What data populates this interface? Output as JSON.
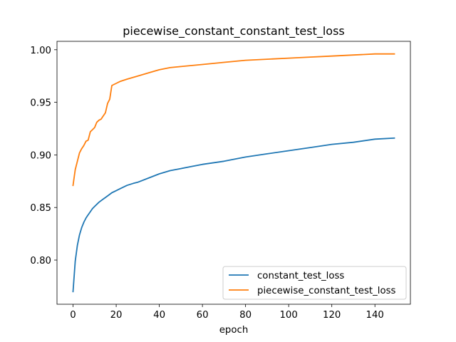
{
  "chart_data": {
    "type": "line",
    "title": "piecewise_constant_constant_test_loss",
    "xlabel": "epoch",
    "ylabel": "",
    "xlim": [
      -7.45,
      156.45
    ],
    "ylim": [
      0.758,
      1.008
    ],
    "xticks": [
      0,
      20,
      40,
      60,
      80,
      100,
      120,
      140
    ],
    "yticks": [
      0.8,
      0.85,
      0.9,
      0.95,
      1.0
    ],
    "ytick_labels": [
      "0.80",
      "0.85",
      "0.90",
      "0.95",
      "1.00"
    ],
    "legend_position": "lower-right",
    "series": [
      {
        "name": "constant_test_loss",
        "color": "#1f77b4",
        "x": [
          0,
          1,
          2,
          3,
          4,
          5,
          6,
          7,
          8,
          9,
          10,
          12,
          14,
          16,
          18,
          20,
          22,
          25,
          28,
          30,
          35,
          40,
          45,
          50,
          55,
          60,
          70,
          80,
          90,
          100,
          110,
          120,
          130,
          140,
          149
        ],
        "y": [
          0.77,
          0.799,
          0.814,
          0.824,
          0.831,
          0.836,
          0.84,
          0.843,
          0.846,
          0.849,
          0.851,
          0.855,
          0.858,
          0.861,
          0.864,
          0.866,
          0.868,
          0.871,
          0.873,
          0.874,
          0.878,
          0.882,
          0.885,
          0.887,
          0.889,
          0.891,
          0.894,
          0.898,
          0.901,
          0.904,
          0.907,
          0.91,
          0.912,
          0.915,
          0.916
        ]
      },
      {
        "name": "piecewise_constant_test_loss",
        "color": "#ff7f0e",
        "x": [
          0,
          1,
          2,
          3,
          4,
          5,
          6,
          7,
          8,
          9,
          10,
          11,
          12,
          13,
          14,
          15,
          16,
          17,
          18,
          19,
          20,
          22,
          25,
          30,
          35,
          40,
          45,
          50,
          60,
          70,
          80,
          90,
          100,
          110,
          120,
          130,
          140,
          149
        ],
        "y": [
          0.871,
          0.886,
          0.894,
          0.902,
          0.906,
          0.909,
          0.913,
          0.914,
          0.922,
          0.924,
          0.926,
          0.931,
          0.933,
          0.934,
          0.937,
          0.94,
          0.949,
          0.953,
          0.966,
          0.967,
          0.968,
          0.97,
          0.972,
          0.975,
          0.978,
          0.981,
          0.983,
          0.984,
          0.986,
          0.988,
          0.99,
          0.991,
          0.992,
          0.993,
          0.994,
          0.995,
          0.996,
          0.996
        ]
      }
    ]
  }
}
